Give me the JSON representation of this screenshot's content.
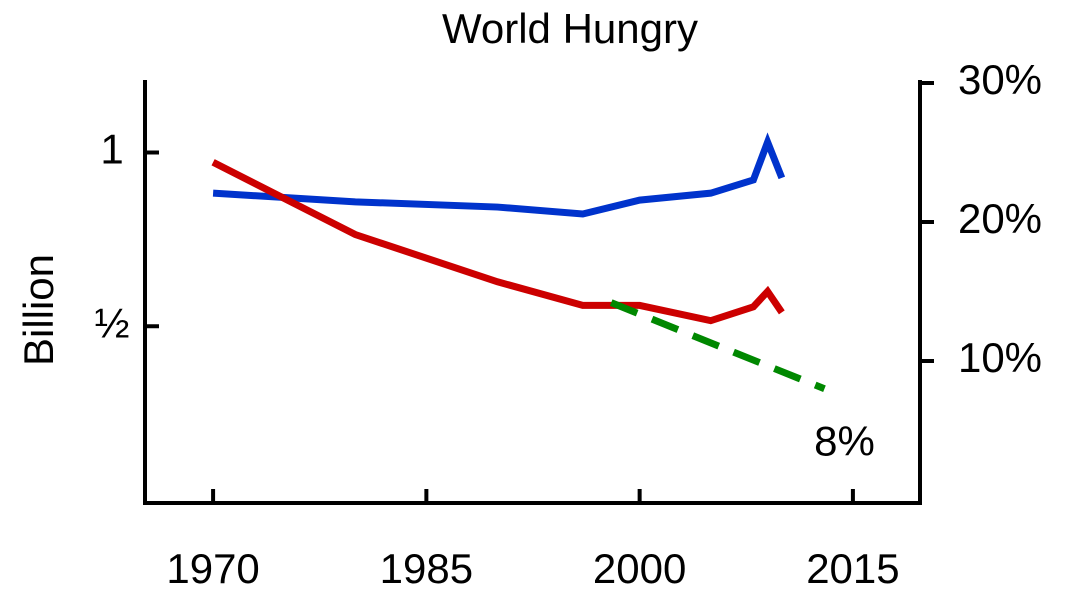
{
  "chart_data": {
    "type": "line",
    "title": "World Hungry",
    "ylabel": "Billion",
    "xlim": [
      1965,
      2020
    ],
    "xticks": [
      1970,
      1985,
      2000,
      2015
    ],
    "ylim": [
      0,
      1.2
    ],
    "yticks": [
      {
        "value": 0.5,
        "label": "½"
      },
      1
    ],
    "y2lim": [
      0,
      30
    ],
    "y2ticks": [
      {
        "value": 10,
        "label": "10%"
      },
      {
        "value": 20,
        "label": "20%"
      },
      {
        "value": 30,
        "label": "30%"
      }
    ],
    "series": [
      {
        "color": "#0033cc",
        "dash": false,
        "x": [
          1970,
          1980,
          1990,
          1996,
          2000,
          2005,
          2008,
          2009,
          2010
        ],
        "values": [
          0.883,
          0.858,
          0.843,
          0.823,
          0.863,
          0.883,
          0.921,
          1.03,
          0.927
        ]
      },
      {
        "color": "#cc0000",
        "dash": false,
        "axis": "y2",
        "x": [
          1970,
          1980,
          1990,
          1996,
          2000,
          2005,
          2008,
          2009,
          2010
        ],
        "values": [
          24.3,
          19.1,
          15.7,
          14.0,
          14.0,
          12.9,
          13.9,
          15.0,
          13.5
        ]
      },
      {
        "color": "#008800",
        "dash": true,
        "axis": "y2",
        "x": [
          1998,
          2013
        ],
        "values": [
          14.2,
          8
        ]
      }
    ],
    "annotations": [
      {
        "text": "8%",
        "x": 2013,
        "y": 4
      }
    ]
  }
}
